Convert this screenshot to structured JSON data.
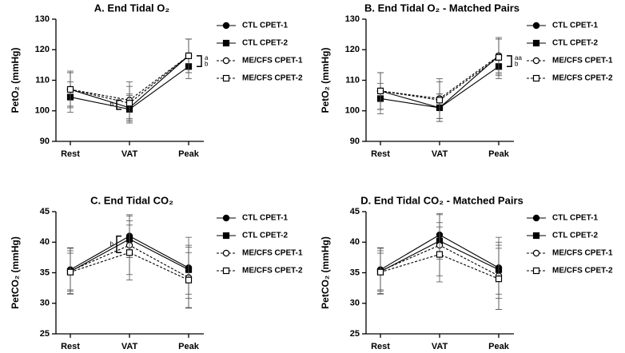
{
  "chart_data": [
    {
      "type": "line",
      "title": "A. End Tidal O₂",
      "ylabel": "PetO₂ (mmHg)",
      "categories": [
        "Rest",
        "VAT",
        "Peak"
      ],
      "ylim": [
        90,
        130
      ],
      "yticks": [
        90,
        100,
        110,
        120,
        130
      ],
      "annotations": [
        "b",
        "a",
        "b"
      ],
      "series": [
        {
          "name": "CTL CPET-1",
          "color": "#000000",
          "marker": "circle",
          "filled": true,
          "dashed": false,
          "values": [
            107,
            101,
            118
          ],
          "errors": [
            5.5,
            4.5,
            5.5
          ]
        },
        {
          "name": "CTL CPET-2",
          "color": "#000000",
          "marker": "square",
          "filled": true,
          "dashed": false,
          "values": [
            104.5,
            100.5,
            114.5
          ],
          "errors": [
            5,
            4.5,
            4
          ]
        },
        {
          "name": "ME/CFS CPET-1",
          "color": "#000000",
          "marker": "circle",
          "filled": false,
          "dashed": true,
          "values": [
            107,
            103.5,
            118
          ],
          "errors": [
            6,
            6,
            5.5
          ]
        },
        {
          "name": "ME/CFS CPET-2",
          "color": "#000000",
          "marker": "square",
          "filled": false,
          "dashed": true,
          "values": [
            107,
            102.5,
            118
          ],
          "errors": [
            5.5,
            5.5,
            5.5
          ]
        }
      ]
    },
    {
      "type": "line",
      "title": "B. End Tidal O₂  - Matched Pairs",
      "ylabel": "PetO₂ (mmHg)",
      "categories": [
        "Rest",
        "VAT",
        "Peak"
      ],
      "ylim": [
        90,
        130
      ],
      "yticks": [
        90,
        100,
        110,
        120,
        130
      ],
      "annotations": [
        "aa",
        "b"
      ],
      "series": [
        {
          "name": "CTL CPET-1",
          "color": "#000000",
          "marker": "circle",
          "filled": true,
          "dashed": false,
          "values": [
            106.5,
            101,
            118
          ],
          "errors": [
            6,
            4.5,
            6
          ]
        },
        {
          "name": "CTL CPET-2",
          "color": "#000000",
          "marker": "square",
          "filled": true,
          "dashed": false,
          "values": [
            104,
            101,
            114.5
          ],
          "errors": [
            5,
            4.5,
            4
          ]
        },
        {
          "name": "ME/CFS CPET-1",
          "color": "#000000",
          "marker": "circle",
          "filled": false,
          "dashed": true,
          "values": [
            106.5,
            104,
            118
          ],
          "errors": [
            6,
            6.5,
            5.5
          ]
        },
        {
          "name": "ME/CFS CPET-2",
          "color": "#000000",
          "marker": "square",
          "filled": false,
          "dashed": true,
          "values": [
            106.5,
            103.5,
            117.5
          ],
          "errors": [
            6,
            6,
            6
          ]
        }
      ]
    },
    {
      "type": "line",
      "title": "C. End Tidal CO₂",
      "ylabel": "PetCO₂ (mmHg)",
      "categories": [
        "Rest",
        "VAT",
        "Peak"
      ],
      "ylim": [
        25,
        45
      ],
      "yticks": [
        25,
        30,
        35,
        40,
        45
      ],
      "annotations": [
        "b"
      ],
      "series": [
        {
          "name": "CTL CPET-1",
          "color": "#000000",
          "marker": "circle",
          "filled": true,
          "dashed": false,
          "values": [
            35.5,
            41,
            35.8
          ],
          "errors": [
            3.5,
            3.5,
            5
          ]
        },
        {
          "name": "CTL CPET-2",
          "color": "#000000",
          "marker": "square",
          "filled": true,
          "dashed": false,
          "values": [
            35.2,
            40.5,
            35.5
          ],
          "errors": [
            3,
            3,
            4
          ]
        },
        {
          "name": "ME/CFS CPET-1",
          "color": "#000000",
          "marker": "circle",
          "filled": false,
          "dashed": true,
          "values": [
            35.3,
            39.5,
            34.2
          ],
          "errors": [
            3.8,
            4.8,
            5
          ]
        },
        {
          "name": "ME/CFS CPET-2",
          "color": "#000000",
          "marker": "square",
          "filled": false,
          "dashed": true,
          "values": [
            35.1,
            38.3,
            33.8
          ],
          "errors": [
            3.5,
            4.5,
            4.5
          ]
        }
      ]
    },
    {
      "type": "line",
      "title": "D. End Tidal CO₂ - Matched Pairs",
      "ylabel": "PetCO₂ (mmHg)",
      "categories": [
        "Rest",
        "VAT",
        "Peak"
      ],
      "ylim": [
        25,
        45
      ],
      "yticks": [
        25,
        30,
        35,
        40,
        45
      ],
      "annotations": [],
      "series": [
        {
          "name": "CTL CPET-1",
          "color": "#000000",
          "marker": "circle",
          "filled": true,
          "dashed": false,
          "values": [
            35.5,
            41.2,
            35.8
          ],
          "errors": [
            3.5,
            3.5,
            5
          ]
        },
        {
          "name": "CTL CPET-2",
          "color": "#000000",
          "marker": "square",
          "filled": true,
          "dashed": false,
          "values": [
            35.2,
            40.2,
            35.5
          ],
          "errors": [
            3,
            3,
            4
          ]
        },
        {
          "name": "ME/CFS CPET-1",
          "color": "#000000",
          "marker": "circle",
          "filled": false,
          "dashed": true,
          "values": [
            35.3,
            39.5,
            34.5
          ],
          "errors": [
            3.8,
            5,
            5.5
          ]
        },
        {
          "name": "ME/CFS CPET-2",
          "color": "#000000",
          "marker": "square",
          "filled": false,
          "dashed": true,
          "values": [
            35.1,
            38,
            34
          ],
          "errors": [
            3.5,
            4.5,
            5
          ]
        }
      ]
    }
  ]
}
